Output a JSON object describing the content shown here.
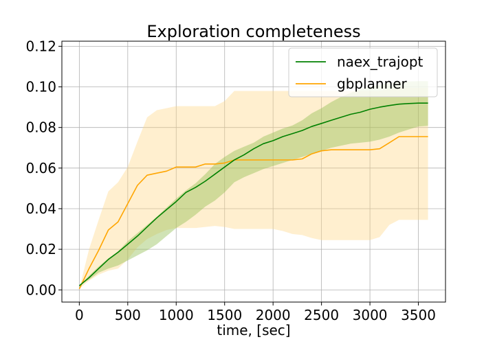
{
  "chart_data": {
    "type": "line",
    "title": "Exploration completeness",
    "xlabel": "time, [sec]",
    "ylabel": "",
    "xlim": [
      -180,
      3780
    ],
    "ylim": [
      -0.006,
      0.1225
    ],
    "x_ticks": [
      0,
      500,
      1000,
      1500,
      2000,
      2500,
      3000,
      3500
    ],
    "y_ticks": [
      0.0,
      0.02,
      0.04,
      0.06,
      0.08,
      0.1,
      0.12
    ],
    "x_tick_labels": [
      "0",
      "500",
      "1000",
      "1500",
      "2000",
      "2500",
      "3000",
      "3500"
    ],
    "y_tick_labels": [
      "0.00",
      "0.02",
      "0.04",
      "0.06",
      "0.08",
      "0.10",
      "0.12"
    ],
    "grid": true,
    "legend_position": "top-right",
    "series": [
      {
        "name": "naex_trajopt",
        "color": "#008000",
        "band_color": "#8fbc4f",
        "band_opacity": 0.42,
        "x": [
          0,
          100,
          200,
          300,
          400,
          500,
          600,
          700,
          800,
          900,
          1000,
          1100,
          1200,
          1300,
          1400,
          1500,
          1600,
          1700,
          1800,
          1900,
          2000,
          2100,
          2200,
          2300,
          2400,
          2500,
          2600,
          2700,
          2800,
          2900,
          3000,
          3100,
          3200,
          3300,
          3400,
          3500,
          3600
        ],
        "values": [
          0.002,
          0.006,
          0.0105,
          0.015,
          0.0185,
          0.0225,
          0.0265,
          0.031,
          0.0355,
          0.0395,
          0.0435,
          0.048,
          0.0505,
          0.0535,
          0.057,
          0.0605,
          0.064,
          0.0665,
          0.0695,
          0.072,
          0.0735,
          0.0755,
          0.077,
          0.0785,
          0.0805,
          0.082,
          0.0835,
          0.085,
          0.0865,
          0.0875,
          0.089,
          0.09,
          0.0908,
          0.0915,
          0.0918,
          0.092,
          0.092
        ],
        "upper": [
          0.002,
          0.007,
          0.0115,
          0.0155,
          0.019,
          0.024,
          0.028,
          0.032,
          0.036,
          0.0405,
          0.045,
          0.049,
          0.0525,
          0.057,
          0.062,
          0.0655,
          0.0685,
          0.0705,
          0.0725,
          0.0755,
          0.0775,
          0.0795,
          0.081,
          0.0835,
          0.087,
          0.0895,
          0.0925,
          0.095,
          0.097,
          0.099,
          0.1,
          0.101,
          0.102,
          0.1025,
          0.1027,
          0.1028,
          0.1028
        ],
        "lower": [
          0.002,
          0.005,
          0.0085,
          0.0105,
          0.012,
          0.0145,
          0.017,
          0.0195,
          0.0225,
          0.0265,
          0.0305,
          0.0335,
          0.037,
          0.041,
          0.044,
          0.048,
          0.053,
          0.0555,
          0.0575,
          0.0595,
          0.061,
          0.0625,
          0.064,
          0.0655,
          0.067,
          0.0685,
          0.07,
          0.071,
          0.072,
          0.0725,
          0.073,
          0.074,
          0.0755,
          0.0775,
          0.079,
          0.0805,
          0.0808
        ]
      },
      {
        "name": "gbplanner",
        "color": "#ffa500",
        "band_color": "#ffd580",
        "band_opacity": 0.38,
        "x": [
          0,
          100,
          200,
          300,
          400,
          500,
          600,
          700,
          800,
          900,
          1000,
          1100,
          1200,
          1300,
          1400,
          1500,
          1600,
          1700,
          1800,
          1900,
          2000,
          2100,
          2200,
          2300,
          2400,
          2500,
          2600,
          2700,
          2800,
          2900,
          3000,
          3100,
          3200,
          3300,
          3400,
          3500,
          3600
        ],
        "values": [
          0.0005,
          0.0105,
          0.0195,
          0.0295,
          0.0335,
          0.0425,
          0.0515,
          0.0565,
          0.0575,
          0.0585,
          0.0605,
          0.0605,
          0.0605,
          0.062,
          0.062,
          0.0625,
          0.064,
          0.064,
          0.064,
          0.064,
          0.064,
          0.064,
          0.064,
          0.0645,
          0.067,
          0.0685,
          0.069,
          0.069,
          0.069,
          0.069,
          0.069,
          0.0695,
          0.0725,
          0.0755,
          0.0755,
          0.0755,
          0.0755
        ],
        "upper": [
          0.0005,
          0.02,
          0.0345,
          0.0485,
          0.053,
          0.0605,
          0.073,
          0.085,
          0.0885,
          0.0895,
          0.0905,
          0.0905,
          0.0905,
          0.0905,
          0.0905,
          0.093,
          0.098,
          0.098,
          0.098,
          0.098,
          0.098,
          0.098,
          0.098,
          0.098,
          0.098,
          0.098,
          0.098,
          0.098,
          0.098,
          0.098,
          0.098,
          0.098,
          0.099,
          0.0995,
          0.0995,
          0.0995,
          0.0995
        ],
        "lower": [
          0.0005,
          0.0045,
          0.0075,
          0.0095,
          0.0105,
          0.015,
          0.021,
          0.025,
          0.0275,
          0.0295,
          0.0305,
          0.0305,
          0.0305,
          0.031,
          0.0315,
          0.031,
          0.03,
          0.03,
          0.03,
          0.03,
          0.03,
          0.029,
          0.0275,
          0.027,
          0.0255,
          0.0245,
          0.0245,
          0.0245,
          0.0245,
          0.0245,
          0.0245,
          0.026,
          0.032,
          0.0345,
          0.0345,
          0.0345,
          0.0345
        ]
      }
    ]
  }
}
